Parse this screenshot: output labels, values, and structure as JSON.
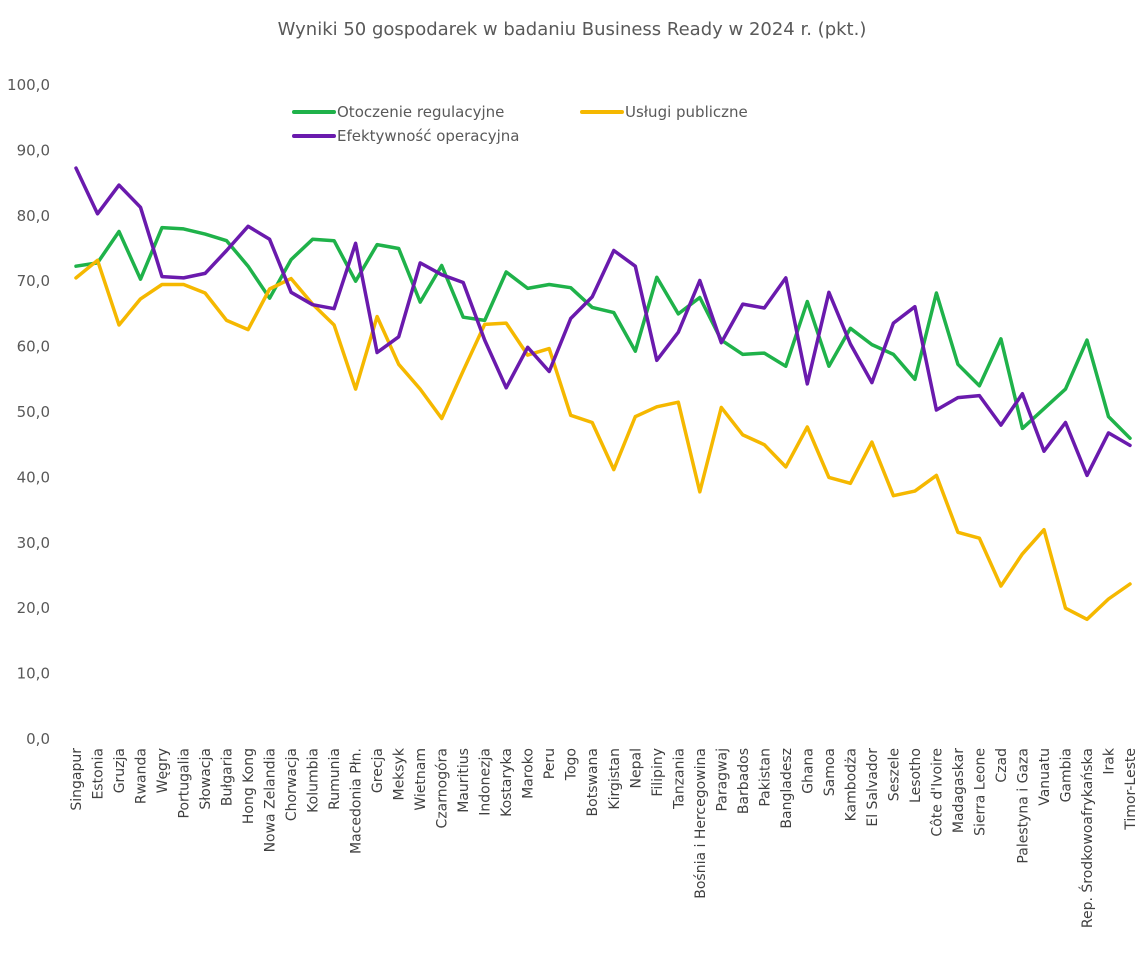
{
  "chart_data": {
    "type": "line",
    "title": "Wyniki 50 gospodarek w badaniu Business Ready w 2024 r. (pkt.)",
    "xlabel": "",
    "ylabel": "",
    "ylim": [
      0,
      100
    ],
    "y_ticks": [
      "0,0",
      "10,0",
      "20,0",
      "30,0",
      "40,0",
      "50,0",
      "60,0",
      "70,0",
      "80,0",
      "90,0",
      "100,0"
    ],
    "grid": false,
    "legend_position": "top",
    "categories": [
      "Singapur",
      "Estonia",
      "Gruzja",
      "Rwanda",
      "Węgry",
      "Portugalia",
      "Słowacja",
      "Bułgaria",
      "Hong Kong",
      "Nowa Zelandia",
      "Chorwacja",
      "Kolumbia",
      "Rumunia",
      "Macedonia Płn.",
      "Grecja",
      "Meksyk",
      "Wietnam",
      "Czarnogóra",
      "Mauritius",
      "Indonezja",
      "Kostaryka",
      "Maroko",
      "Peru",
      "Togo",
      "Botswana",
      "Kirgistan",
      "Nepal",
      "Filipiny",
      "Tanzania",
      "Bośnia i Hercegowina",
      "Paragwaj",
      "Barbados",
      "Pakistan",
      "Bangladesz",
      "Ghana",
      "Samoa",
      "Kambodża",
      "El Salvador",
      "Seszele",
      "Lesotho",
      "Côte d'Ivoire",
      "Madagaskar",
      "Sierra Leone",
      "Czad",
      "Palestyna i Gaza",
      "Vanuatu",
      "Gambia",
      "Rep. Środkowoafrykańska",
      "Irak",
      "Timor-Leste"
    ],
    "series": [
      {
        "name": "Otoczenie regulacyjne",
        "color": "#1fb24a",
        "values": [
          72.3,
          72.8,
          77.6,
          70.3,
          78.2,
          78.0,
          77.2,
          76.2,
          72.3,
          67.4,
          73.3,
          76.4,
          76.2,
          70.0,
          75.6,
          75.0,
          66.8,
          72.4,
          64.5,
          64.0,
          71.4,
          68.9,
          69.5,
          69.0,
          66.0,
          65.2,
          59.3,
          70.6,
          65.0,
          67.5,
          61.0,
          58.8,
          59.0,
          57.0,
          66.9,
          57.0,
          62.8,
          60.3,
          58.8,
          55.0,
          68.2,
          57.3,
          54.0,
          61.2,
          47.5,
          50.5,
          53.5,
          61.0,
          49.3,
          46.0
        ]
      },
      {
        "name": "Usługi publiczne",
        "color": "#f5b800",
        "values": [
          70.5,
          73.2,
          63.3,
          67.3,
          69.5,
          69.5,
          68.2,
          64.0,
          62.6,
          68.8,
          70.4,
          66.5,
          63.3,
          53.5,
          64.6,
          57.3,
          53.5,
          49.0,
          56.3,
          63.4,
          63.6,
          58.7,
          59.7,
          49.5,
          48.4,
          41.2,
          49.3,
          50.8,
          51.5,
          37.8,
          50.7,
          46.5,
          45.0,
          41.6,
          47.7,
          40.0,
          39.1,
          45.4,
          37.2,
          37.9,
          40.3,
          31.6,
          30.7,
          23.4,
          28.3,
          32.0,
          20.0,
          18.3,
          21.4,
          23.7
        ]
      },
      {
        "name": "Efektywność operacyjna",
        "color": "#6a1aad",
        "values": [
          87.3,
          80.3,
          84.7,
          81.3,
          70.7,
          70.5,
          71.2,
          74.7,
          78.4,
          76.4,
          68.3,
          66.4,
          65.8,
          75.8,
          59.1,
          61.5,
          72.8,
          71.0,
          69.8,
          61.0,
          53.7,
          59.9,
          56.2,
          64.3,
          67.6,
          74.7,
          72.3,
          57.9,
          62.2,
          70.1,
          60.6,
          66.5,
          65.9,
          70.5,
          54.3,
          68.3,
          60.4,
          54.5,
          63.6,
          66.1,
          50.3,
          52.2,
          52.5,
          48.0,
          52.8,
          44.0,
          48.4,
          40.3,
          46.8,
          44.9
        ]
      }
    ]
  }
}
